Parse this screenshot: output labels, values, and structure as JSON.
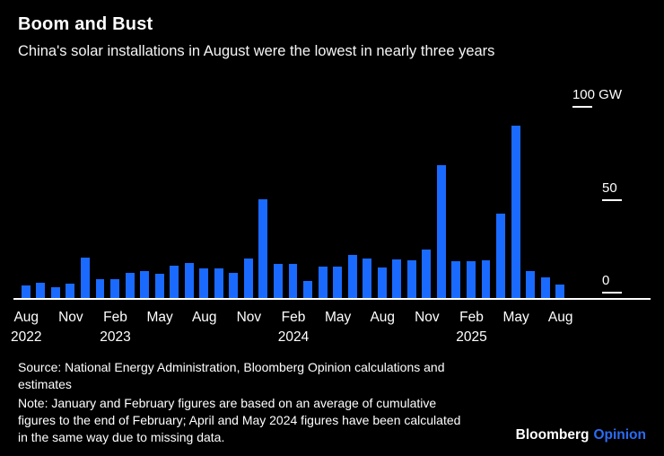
{
  "header": {
    "title": "Boom and Bust",
    "subtitle": "China's solar installations in August were the lowest in nearly three years"
  },
  "chart_data": {
    "type": "bar",
    "title": "Boom and Bust",
    "subtitle": "China's solar installations in August were the lowest in nearly three years",
    "unit": "GW",
    "ylim": [
      0,
      100
    ],
    "grid": false,
    "legend": "none",
    "y_ticks": [
      {
        "value": 100,
        "label": "100 GW"
      },
      {
        "value": 50,
        "label": "50"
      },
      {
        "value": 0,
        "label": "0"
      }
    ],
    "x": [
      "Aug 2022",
      "Sep 2022",
      "Oct 2022",
      "Nov 2022",
      "Dec 2022",
      "Jan 2023",
      "Feb 2023",
      "Mar 2023",
      "Apr 2023",
      "May 2023",
      "Jun 2023",
      "Jul 2023",
      "Aug 2023",
      "Sep 2023",
      "Oct 2023",
      "Nov 2023",
      "Dec 2023",
      "Jan 2024",
      "Feb 2024",
      "Mar 2024",
      "Apr 2024",
      "May 2024",
      "Jun 2024",
      "Jul 2024",
      "Aug 2024",
      "Sep 2024",
      "Oct 2024",
      "Nov 2024",
      "Dec 2024",
      "Jan 2025",
      "Feb 2025",
      "Mar 2025",
      "Apr 2025",
      "May 2025",
      "Jun 2025",
      "Jul 2025",
      "Aug 2025"
    ],
    "values": [
      7,
      8,
      6,
      7.5,
      21.7,
      10.2,
      10.2,
      13.3,
      14.7,
      12.9,
      17.2,
      18.7,
      16,
      15.8,
      13.6,
      21.3,
      53,
      18.3,
      18.3,
      9,
      16.7,
      16.7,
      23.3,
      21.1,
      16.5,
      20.9,
      20.4,
      26,
      71.3,
      19.7,
      19.7,
      20.2,
      45.2,
      92.9,
      14.4,
      11,
      7.4
    ],
    "x_ticks": [
      {
        "index": 0,
        "label": "Aug",
        "year": "2022"
      },
      {
        "index": 3,
        "label": "Nov",
        "year": ""
      },
      {
        "index": 6,
        "label": "Feb",
        "year": "2023"
      },
      {
        "index": 9,
        "label": "May",
        "year": ""
      },
      {
        "index": 12,
        "label": "Aug",
        "year": ""
      },
      {
        "index": 15,
        "label": "Nov",
        "year": ""
      },
      {
        "index": 18,
        "label": "Feb",
        "year": "2024"
      },
      {
        "index": 21,
        "label": "May",
        "year": ""
      },
      {
        "index": 24,
        "label": "Aug",
        "year": ""
      },
      {
        "index": 27,
        "label": "Nov",
        "year": ""
      },
      {
        "index": 30,
        "label": "Feb",
        "year": "2025"
      },
      {
        "index": 33,
        "label": "May",
        "year": ""
      },
      {
        "index": 36,
        "label": "Aug",
        "year": ""
      }
    ]
  },
  "footer": {
    "source": "Source: National Energy Administration, Bloomberg Opinion calculations and estimates",
    "note": "Note: January and February figures are based on an average of cumulative figures to the end of February; April and May 2024 figures have been calculated in the same way due to missing data.",
    "logo": {
      "brand": "Bloomberg",
      "section": "Opinion"
    }
  },
  "colors": {
    "background": "#000000",
    "bar": "#1A6AFF",
    "text": "#FFFFFF",
    "axis": "#FFFFFF",
    "logo_accent": "#2B6CF4"
  }
}
